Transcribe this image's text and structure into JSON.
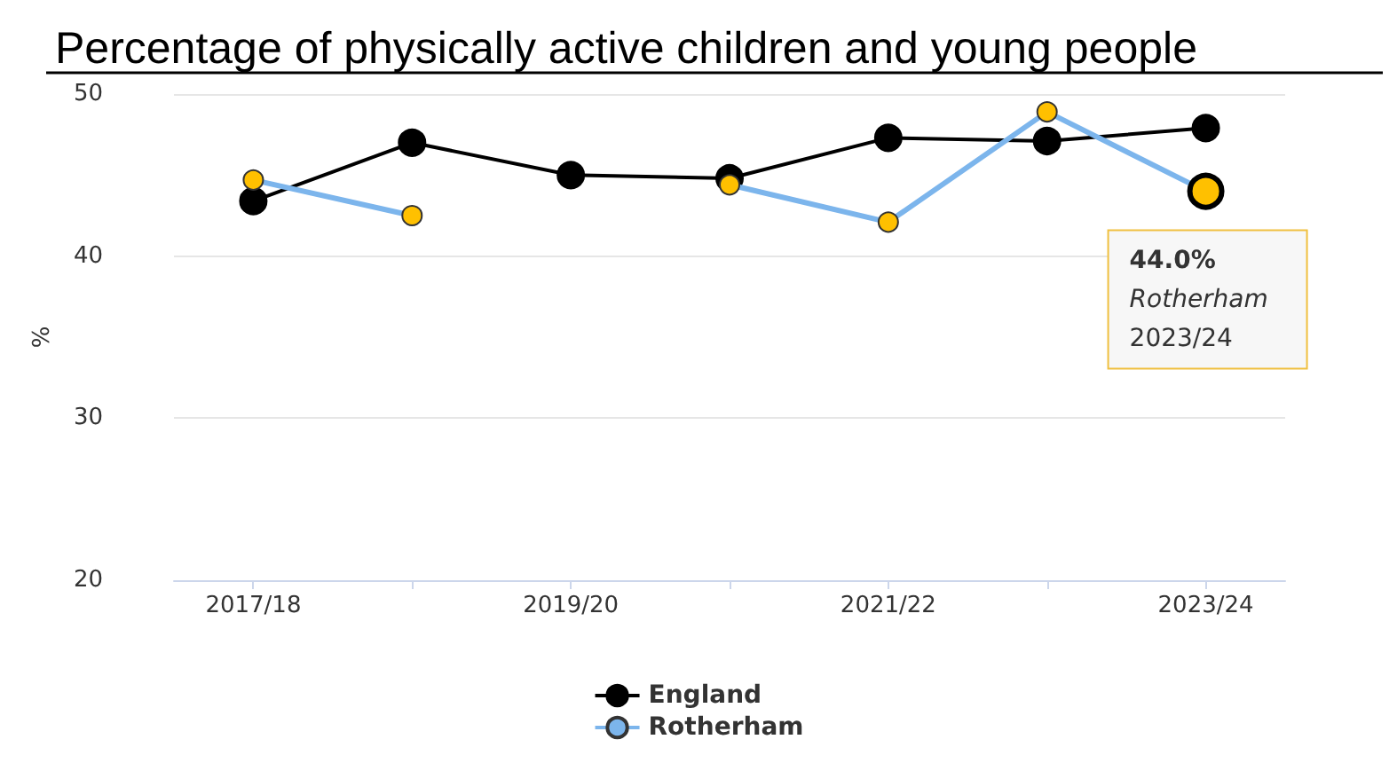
{
  "chart_data": {
    "type": "line",
    "title": "Percentage of physically active children and young people",
    "ylabel": "%",
    "categories": [
      "2017/18",
      null,
      "2019/20",
      null,
      "2021/22",
      null,
      "2023/24"
    ],
    "series": [
      {
        "name": "England",
        "color": "#000000",
        "values": [
          43.4,
          47.0,
          45.0,
          44.8,
          47.3,
          47.1,
          47.9
        ]
      },
      {
        "name": "Rotherham",
        "color": "#7cb5ec",
        "values": [
          44.7,
          42.5,
          null,
          44.4,
          42.1,
          48.9,
          44.0
        ]
      }
    ],
    "annotations": [
      {
        "text": "44.0%\nRotherham\n2023/24",
        "x": "2023/24",
        "y": 44.0
      }
    ],
    "ylim": [
      20,
      50
    ],
    "yticks": [
      20,
      30,
      40,
      50
    ],
    "grid": "y",
    "legend": "bottom",
    "marker": "circle"
  }
}
